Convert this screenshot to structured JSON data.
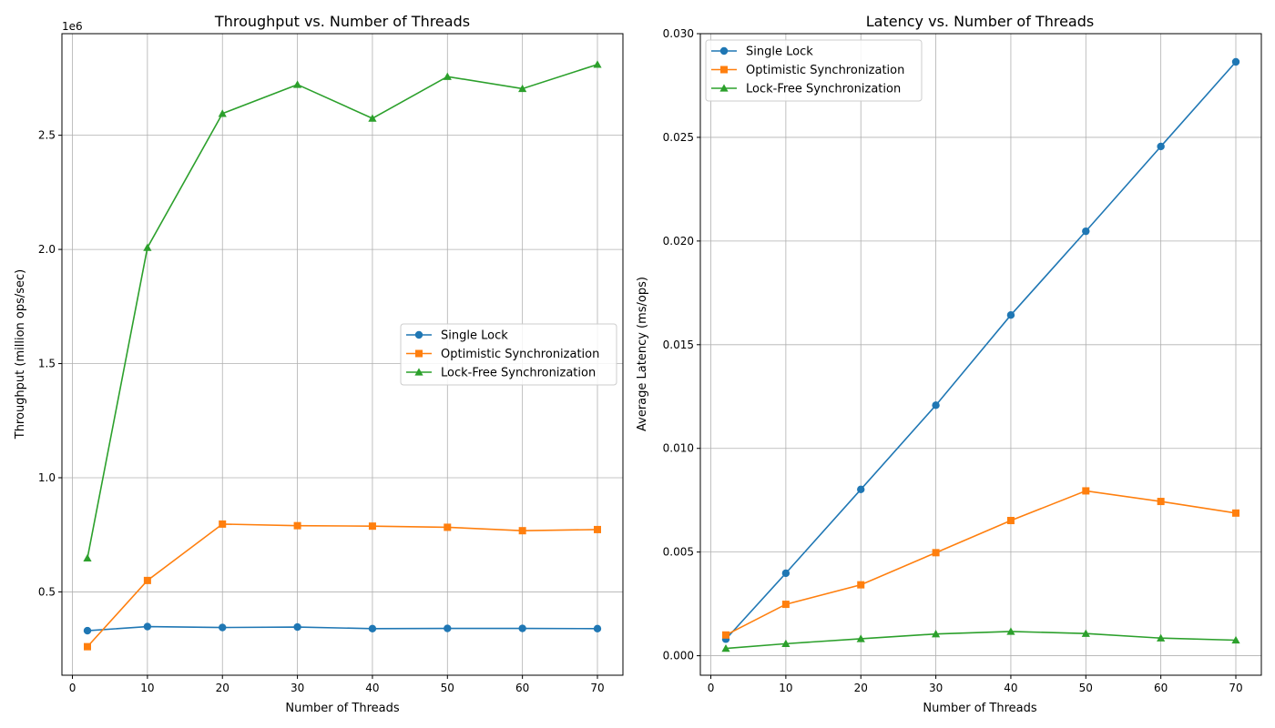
{
  "chart_data": [
    {
      "type": "line",
      "title": "Throughput vs. Number of Threads",
      "xlabel": "Number of Threads",
      "ylabel": "Throughput (million ops/sec)",
      "offset_label": "1e6",
      "xlim": [
        -1.4,
        73.4
      ],
      "ylim": [
        135000,
        2945000
      ],
      "xticks": [
        0,
        10,
        20,
        30,
        40,
        50,
        60,
        70
      ],
      "xtick_labels": [
        "0",
        "10",
        "20",
        "30",
        "40",
        "50",
        "60",
        "70"
      ],
      "yticks": [
        500000,
        1000000,
        1500000,
        2000000,
        2500000
      ],
      "ytick_labels": [
        "0.5",
        "1.0",
        "1.5",
        "2.0",
        "2.5"
      ],
      "grid": true,
      "legend_position": "center-right",
      "x": [
        2,
        10,
        20,
        30,
        40,
        50,
        60,
        70
      ],
      "series": [
        {
          "name": "Single Lock",
          "color": "#1f77b4",
          "marker": "circle",
          "values": [
            330000,
            348000,
            344000,
            346000,
            339000,
            340000,
            340000,
            339000
          ]
        },
        {
          "name": "Optimistic Synchronization",
          "color": "#ff7f0e",
          "marker": "square",
          "values": [
            260000,
            550000,
            797000,
            790000,
            788000,
            783000,
            768000,
            773000
          ]
        },
        {
          "name": "Lock-Free Synchronization",
          "color": "#2ca02c",
          "marker": "triangle",
          "values": [
            648000,
            2008000,
            2595000,
            2722000,
            2574000,
            2757000,
            2704000,
            2810000
          ]
        }
      ]
    },
    {
      "type": "line",
      "title": "Latency vs. Number of Threads",
      "xlabel": "Number of Threads",
      "ylabel": "Average Latency (ms/ops)",
      "offset_label": "",
      "xlim": [
        -1.4,
        73.4
      ],
      "ylim": [
        -0.00094,
        0.03
      ],
      "xticks": [
        0,
        10,
        20,
        30,
        40,
        50,
        60,
        70
      ],
      "xtick_labels": [
        "0",
        "10",
        "20",
        "30",
        "40",
        "50",
        "60",
        "70"
      ],
      "yticks": [
        0,
        0.005,
        0.01,
        0.015,
        0.02,
        0.025,
        0.03
      ],
      "ytick_labels": [
        "0.000",
        "0.005",
        "0.010",
        "0.015",
        "0.020",
        "0.025",
        "0.030"
      ],
      "grid": true,
      "legend_position": "upper-left",
      "x": [
        2,
        10,
        20,
        30,
        40,
        50,
        60,
        70
      ],
      "series": [
        {
          "name": "Single Lock",
          "color": "#1f77b4",
          "marker": "circle",
          "values": [
            0.0008,
            0.00398,
            0.00802,
            0.01208,
            0.01643,
            0.02047,
            0.02456,
            0.02864
          ]
        },
        {
          "name": "Optimistic Synchronization",
          "color": "#ff7f0e",
          "marker": "square",
          "values": [
            0.001,
            0.00248,
            0.00342,
            0.00497,
            0.00652,
            0.00795,
            0.00744,
            0.00688
          ]
        },
        {
          "name": "Lock-Free Synchronization",
          "color": "#2ca02c",
          "marker": "triangle",
          "values": [
            0.00035,
            0.00058,
            0.00082,
            0.00105,
            0.00117,
            0.00107,
            0.00085,
            0.00075
          ]
        }
      ]
    }
  ]
}
